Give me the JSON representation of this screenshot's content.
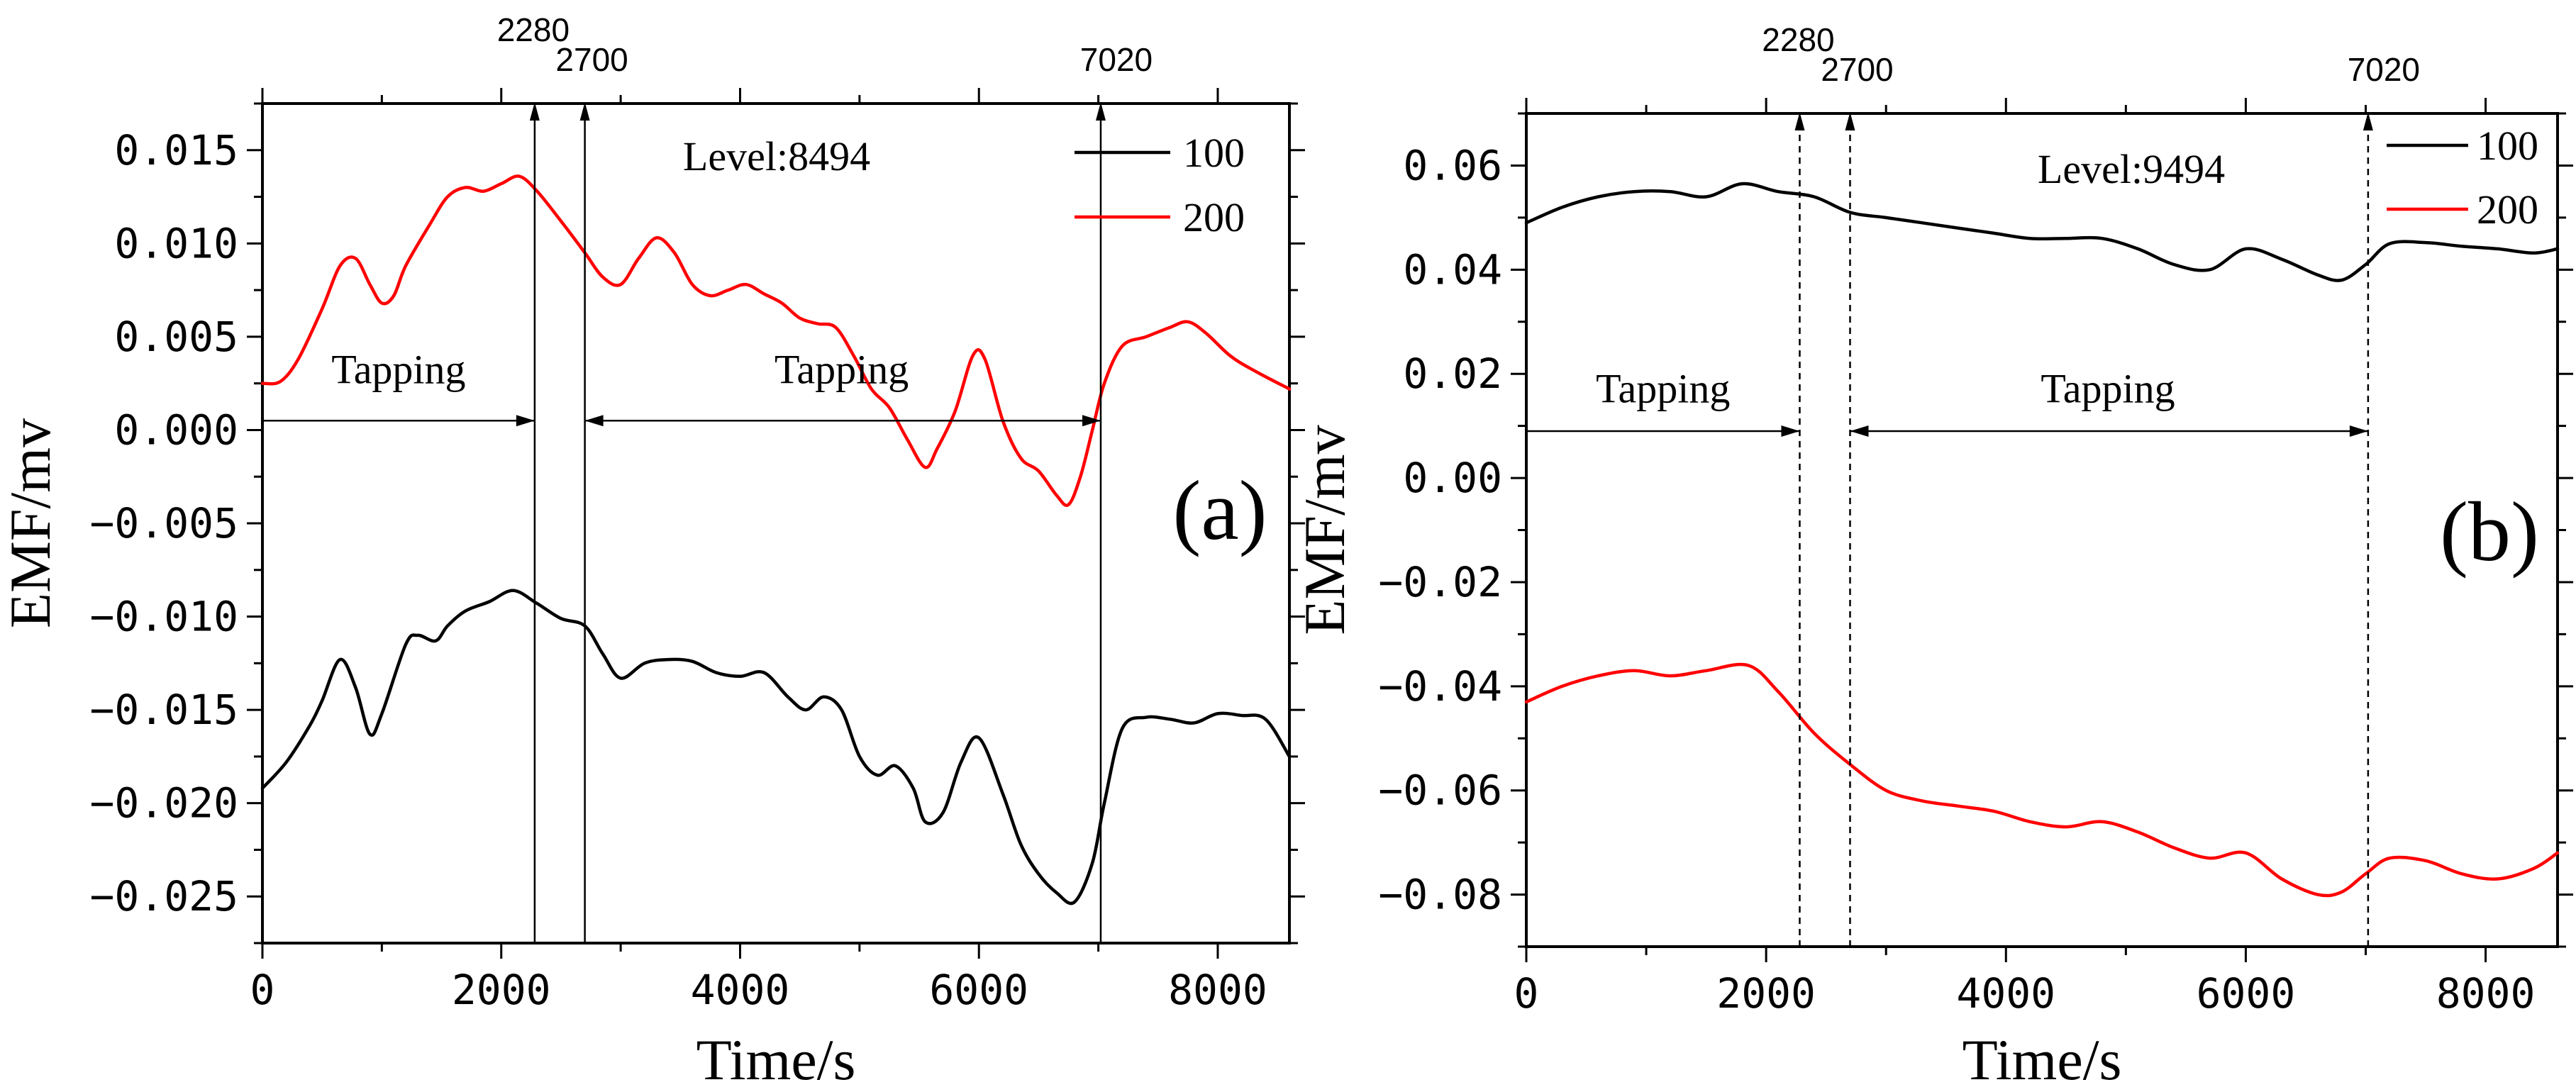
{
  "chart_data": [
    {
      "panel_label": "(a)",
      "type": "line",
      "annotation": "Level:8494",
      "xlabel": "Time/s",
      "ylabel": "EMF/mv",
      "xlim": [
        0,
        8600
      ],
      "ylim": [
        -0.0275,
        0.0175
      ],
      "xticks": [
        0,
        2000,
        4000,
        6000,
        8000
      ],
      "xtick_labels": [
        "0",
        "2000",
        "4000",
        "6000",
        "8000"
      ],
      "yticks": [
        0.015,
        0.01,
        0.005,
        0.0,
        -0.005,
        -0.01,
        -0.015,
        -0.02,
        -0.025
      ],
      "ytick_labels": [
        "0.015",
        "0.010",
        "0.005",
        "0.000",
        "−0.005",
        "−0.010",
        "−0.015",
        "−0.020",
        "−0.025"
      ],
      "markers": [
        {
          "x": 2280,
          "label": "2280"
        },
        {
          "x": 2700,
          "label": "2700"
        },
        {
          "x": 7020,
          "label": "7020"
        }
      ],
      "marker_style": "solid",
      "tapping_intervals": [
        {
          "from": 0,
          "to": 2280,
          "label": "Tapping",
          "y": 0.0005,
          "label_x": 1400,
          "label_y": 0.0025
        },
        {
          "from": 2700,
          "to": 7020,
          "label": "Tapping",
          "y": 0.0005,
          "label_x": 4850,
          "label_y": 0.0025
        }
      ],
      "legend_position": "top-right",
      "series": [
        {
          "name": "100",
          "color": "#000000",
          "x": [
            0,
            200,
            400,
            500,
            650,
            780,
            900,
            1000,
            1200,
            1300,
            1450,
            1550,
            1700,
            1900,
            2100,
            2300,
            2500,
            2700,
            2850,
            3000,
            3200,
            3400,
            3600,
            3800,
            4000,
            4200,
            4400,
            4550,
            4700,
            4850,
            5000,
            5150,
            5300,
            5450,
            5550,
            5700,
            5850,
            6000,
            6200,
            6350,
            6500,
            6650,
            6800,
            6950,
            7050,
            7200,
            7400,
            7600,
            7800,
            8000,
            8200,
            8400,
            8600
          ],
          "y": [
            -0.0192,
            -0.0178,
            -0.0158,
            -0.0145,
            -0.0123,
            -0.0138,
            -0.0163,
            -0.0152,
            -0.0115,
            -0.011,
            -0.0113,
            -0.0105,
            -0.0097,
            -0.0092,
            -0.0086,
            -0.0093,
            -0.0101,
            -0.0105,
            -0.012,
            -0.0133,
            -0.0125,
            -0.0123,
            -0.0124,
            -0.013,
            -0.0132,
            -0.013,
            -0.0143,
            -0.015,
            -0.0143,
            -0.015,
            -0.0175,
            -0.0185,
            -0.018,
            -0.0192,
            -0.021,
            -0.0205,
            -0.0178,
            -0.0165,
            -0.0195,
            -0.0222,
            -0.0238,
            -0.0248,
            -0.0253,
            -0.0232,
            -0.02,
            -0.016,
            -0.0154,
            -0.0155,
            -0.0157,
            -0.0152,
            -0.0153,
            -0.0155,
            -0.0175
          ]
        },
        {
          "name": "200",
          "color": "#ff0000",
          "x": [
            0,
            150,
            300,
            500,
            650,
            780,
            900,
            1000,
            1100,
            1200,
            1400,
            1550,
            1700,
            1850,
            2000,
            2150,
            2300,
            2500,
            2700,
            2850,
            3000,
            3150,
            3300,
            3450,
            3600,
            3750,
            3900,
            4050,
            4200,
            4350,
            4500,
            4650,
            4800,
            4950,
            5100,
            5250,
            5400,
            5550,
            5650,
            5800,
            5950,
            6050,
            6200,
            6350,
            6500,
            6650,
            6750,
            6850,
            6950,
            7050,
            7200,
            7400,
            7600,
            7750,
            7900,
            8100,
            8300,
            8600
          ],
          "y": [
            0.0025,
            0.0026,
            0.0038,
            0.0065,
            0.0088,
            0.0092,
            0.0078,
            0.0068,
            0.0072,
            0.0088,
            0.011,
            0.0125,
            0.013,
            0.0128,
            0.0132,
            0.0136,
            0.0128,
            0.0112,
            0.0095,
            0.0082,
            0.0078,
            0.0092,
            0.0103,
            0.0095,
            0.0078,
            0.0072,
            0.0075,
            0.0078,
            0.0073,
            0.0068,
            0.006,
            0.0057,
            0.0055,
            0.004,
            0.0022,
            0.0012,
            -0.0005,
            -0.002,
            -0.001,
            0.001,
            0.004,
            0.0038,
            0.0005,
            -0.0015,
            -0.0022,
            -0.0035,
            -0.004,
            -0.0025,
            0.0,
            0.0025,
            0.0045,
            0.005,
            0.0055,
            0.0058,
            0.0052,
            0.004,
            0.0032,
            0.0022
          ]
        }
      ]
    },
    {
      "panel_label": "(b)",
      "type": "line",
      "annotation": "Level:9494",
      "xlabel": "Time/s",
      "ylabel": "EMF/mv",
      "xlim": [
        0,
        8600
      ],
      "ylim": [
        -0.09,
        0.07
      ],
      "xticks": [
        0,
        2000,
        4000,
        6000,
        8000
      ],
      "xtick_labels": [
        "0",
        "2000",
        "4000",
        "6000",
        "8000"
      ],
      "yticks": [
        0.06,
        0.04,
        0.02,
        0.0,
        -0.02,
        -0.04,
        -0.06,
        -0.08
      ],
      "ytick_labels": [
        "0.06",
        "0.04",
        "0.02",
        "0.00",
        "−0.02",
        "−0.04",
        "−0.06",
        "−0.08"
      ],
      "markers": [
        {
          "x": 2280,
          "label": "2280"
        },
        {
          "x": 2700,
          "label": "2700"
        },
        {
          "x": 7020,
          "label": "7020"
        }
      ],
      "marker_style": "dashed",
      "tapping_intervals": [
        {
          "from": 0,
          "to": 2280,
          "label": "Tapping",
          "y": 0.009,
          "label_x": 1020,
          "label_y": 0.0145
        },
        {
          "from": 2700,
          "to": 7020,
          "label": "Tapping",
          "y": 0.009,
          "label_x": 4850,
          "label_y": 0.0145
        }
      ],
      "legend_position": "top-right",
      "series": [
        {
          "name": "100",
          "color": "#000000",
          "x": [
            0,
            300,
            600,
            900,
            1200,
            1500,
            1800,
            2100,
            2400,
            2700,
            3000,
            3300,
            3600,
            3900,
            4200,
            4500,
            4800,
            5100,
            5400,
            5700,
            6000,
            6300,
            6600,
            6800,
            7000,
            7200,
            7500,
            7800,
            8100,
            8400,
            8600
          ],
          "y": [
            0.049,
            0.052,
            0.054,
            0.055,
            0.055,
            0.054,
            0.0565,
            0.055,
            0.054,
            0.051,
            0.05,
            0.049,
            0.048,
            0.047,
            0.046,
            0.046,
            0.046,
            0.044,
            0.041,
            0.04,
            0.044,
            0.042,
            0.039,
            0.038,
            0.041,
            0.045,
            0.0452,
            0.0445,
            0.044,
            0.0432,
            0.044
          ]
        },
        {
          "name": "200",
          "color": "#ff0000",
          "x": [
            0,
            300,
            600,
            900,
            1200,
            1500,
            1850,
            2100,
            2400,
            2700,
            3000,
            3300,
            3600,
            3900,
            4200,
            4500,
            4800,
            5100,
            5400,
            5700,
            6000,
            6300,
            6600,
            6800,
            7000,
            7200,
            7500,
            7800,
            8100,
            8400,
            8600
          ],
          "y": [
            -0.043,
            -0.04,
            -0.038,
            -0.037,
            -0.038,
            -0.037,
            -0.036,
            -0.041,
            -0.049,
            -0.055,
            -0.06,
            -0.062,
            -0.063,
            -0.064,
            -0.066,
            -0.067,
            -0.066,
            -0.068,
            -0.071,
            -0.073,
            -0.072,
            -0.077,
            -0.08,
            -0.0795,
            -0.076,
            -0.073,
            -0.0735,
            -0.076,
            -0.077,
            -0.075,
            -0.072
          ]
        }
      ]
    }
  ]
}
